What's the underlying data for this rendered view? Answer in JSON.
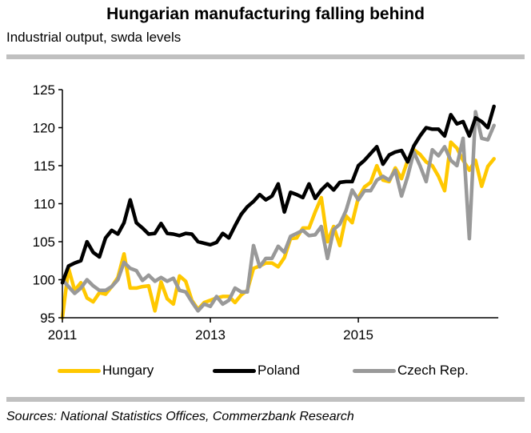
{
  "header": {
    "title": "Hungarian manufacturing falling behind",
    "subtitle": "Industrial output, swda levels"
  },
  "footer": {
    "source": "Sources: National Statistics Offices, Commerzbank Research"
  },
  "chart_data": {
    "type": "line",
    "title": "Hungarian manufacturing falling behind",
    "subtitle": "Industrial output, swda levels",
    "xlabel": "",
    "ylabel": "",
    "x_start": "2011-01",
    "x_frequency": "monthly",
    "x_ticks": [
      "2011",
      "2013",
      "2015"
    ],
    "x_tick_interval_months": 24,
    "x_range_months": [
      0,
      72
    ],
    "ylim": [
      95,
      125
    ],
    "y_ticks": [
      95,
      100,
      105,
      110,
      115,
      120,
      125
    ],
    "grid": false,
    "legend_position": "bottom",
    "series": [
      {
        "name": "Hungary",
        "color": "#FFC800",
        "values": [
          95.0,
          101.5,
          98.6,
          99.6,
          97.6,
          97.1,
          98.3,
          98.1,
          99.1,
          100.3,
          103.4,
          98.9,
          98.9,
          99.1,
          99.2,
          95.9,
          99.7,
          97.5,
          96.8,
          100.5,
          99.8,
          97.3,
          96.1,
          97.0,
          97.3,
          97.6,
          97.8,
          97.8,
          97.0,
          98.0,
          98.6,
          101.5,
          101.8,
          102.2,
          102.2,
          101.7,
          102.9,
          105.4,
          105.5,
          106.8,
          106.8,
          108.9,
          110.8,
          105.0,
          107.0,
          104.5,
          108.4,
          107.5,
          110.8,
          112.2,
          112.8,
          115.0,
          113.1,
          112.9,
          114.7,
          113.3,
          115.7,
          117.1,
          116.5,
          115.5,
          115.0,
          113.6,
          111.7,
          118.1,
          117.3,
          115.7,
          114.4,
          115.7,
          112.3,
          114.9,
          115.9
        ]
      },
      {
        "name": "Poland",
        "color": "#000000",
        "values": [
          99.6,
          101.8,
          102.2,
          102.5,
          105.0,
          103.6,
          103.0,
          105.5,
          106.5,
          106.0,
          107.5,
          110.5,
          107.5,
          106.8,
          106.0,
          106.1,
          107.4,
          106.1,
          106.0,
          105.8,
          106.1,
          106.0,
          105.0,
          104.8,
          104.6,
          104.9,
          106.1,
          105.5,
          107.1,
          108.6,
          109.6,
          110.3,
          111.2,
          110.5,
          111.0,
          112.6,
          108.9,
          111.5,
          111.2,
          110.8,
          112.6,
          110.7,
          111.8,
          112.6,
          111.8,
          112.8,
          112.9,
          112.9,
          115.0,
          115.7,
          116.6,
          117.5,
          115.2,
          116.4,
          116.8,
          117.0,
          115.5,
          117.6,
          118.9,
          120.0,
          119.8,
          119.8,
          118.9,
          121.7,
          120.5,
          120.8,
          118.9,
          121.3,
          120.8,
          120.0,
          122.8
        ]
      },
      {
        "name": "Czech Rep.",
        "color": "#999999",
        "values": [
          100.0,
          99.1,
          98.2,
          98.9,
          100.0,
          99.2,
          98.6,
          98.6,
          99.1,
          100.0,
          102.3,
          101.5,
          101.2,
          99.9,
          100.6,
          99.8,
          100.3,
          99.8,
          100.2,
          98.6,
          98.4,
          97.1,
          95.9,
          96.8,
          96.5,
          97.8,
          96.8,
          97.3,
          98.9,
          98.4,
          98.4,
          104.5,
          101.7,
          102.8,
          102.8,
          104.4,
          103.6,
          105.7,
          106.1,
          106.5,
          105.8,
          105.9,
          107.0,
          102.8,
          106.6,
          107.3,
          109.1,
          111.8,
          110.5,
          111.7,
          111.7,
          113.1,
          113.6,
          113.1,
          114.4,
          111.0,
          113.6,
          116.8,
          115.0,
          112.9,
          117.1,
          116.3,
          117.5,
          115.7,
          115.0,
          118.6,
          105.4,
          122.1,
          118.6,
          118.4,
          120.3
        ]
      }
    ]
  }
}
